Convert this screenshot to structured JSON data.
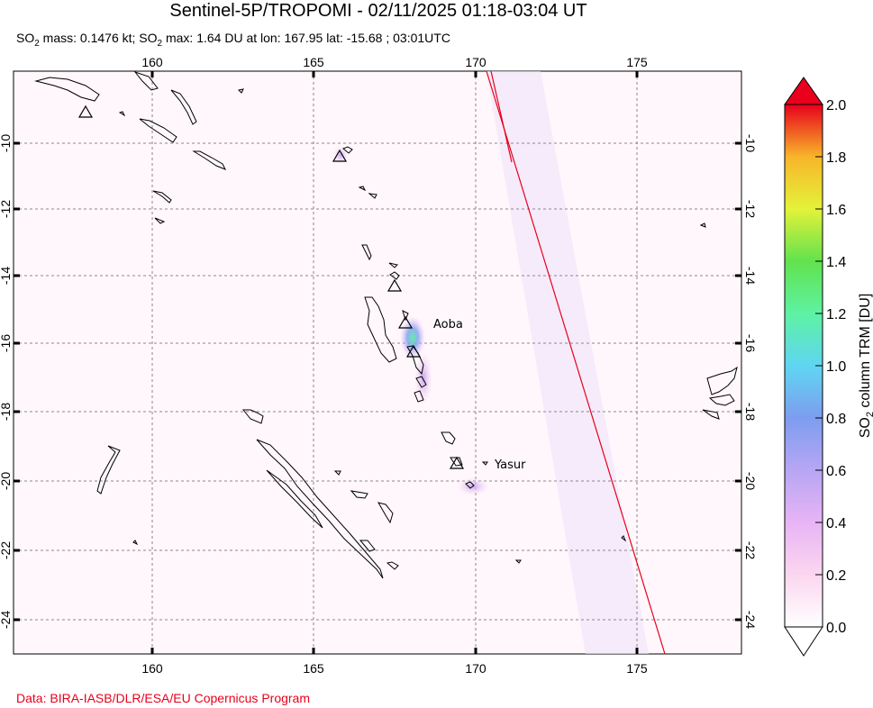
{
  "title": "Sentinel-5P/TROPOMI - 02/11/2025 01:18-03:04 UT",
  "subtitle": {
    "mass_prefix": "SO",
    "mass_sub": "2",
    "mass_text": " mass: 0.1476 kt; ",
    "max_prefix": "SO",
    "max_sub": "2",
    "max_text": " max: 1.64 DU at lon: 167.95 lat: -15.68 ; 03:01UTC"
  },
  "credit": "Data: BIRA-IASB/DLR/ESA/EU Copernicus Program",
  "map": {
    "lon_ticks": [
      "160",
      "165",
      "170",
      "175"
    ],
    "lat_ticks": [
      "-10",
      "-12",
      "-14",
      "-16",
      "-18",
      "-20",
      "-22",
      "-24"
    ],
    "volcanoes": [
      {
        "name": "Aoba",
        "labeled": true
      },
      {
        "name": "Yasur",
        "labeled": true
      }
    ]
  },
  "colorbar": {
    "label_prefix": "SO",
    "label_sub": "2",
    "label_suffix": " column TRM [DU]",
    "ticks": [
      "0.0",
      "0.2",
      "0.4",
      "0.6",
      "0.8",
      "1.0",
      "1.2",
      "1.4",
      "1.6",
      "1.8",
      "2.0"
    ],
    "colors": [
      "#ffffff",
      "#fbd6ef",
      "#e8b4f5",
      "#b7a6f4",
      "#7d9df0",
      "#5fd6f2",
      "#5ef2a3",
      "#62e24d",
      "#e4f23a",
      "#f8b52a",
      "#f4631c",
      "#e8001c"
    ]
  }
}
